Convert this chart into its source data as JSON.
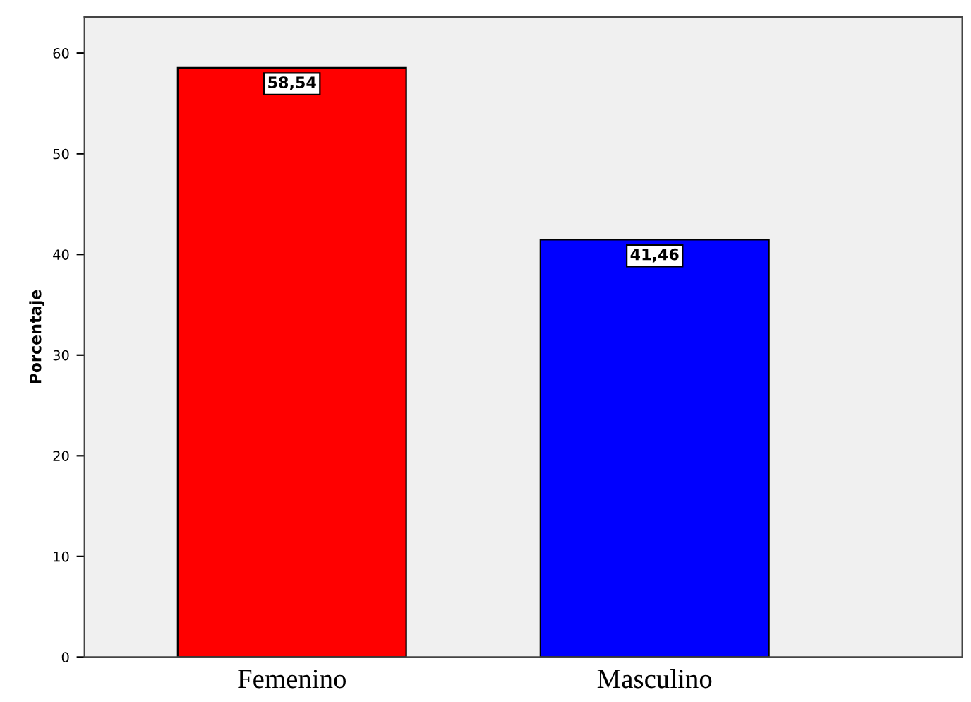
{
  "chart_data": {
    "type": "bar",
    "ylabel": "Porcentaje",
    "categories": [
      "Femenino",
      "Masculino"
    ],
    "values": [
      58.54,
      41.46
    ],
    "colors": [
      "#ff0000",
      "#0000ff"
    ],
    "value_labels": [
      "58,54",
      "41,46"
    ],
    "ylim": [
      0,
      63.6
    ],
    "yticks": [
      0,
      10,
      20,
      30,
      40,
      50,
      60
    ],
    "grid": false,
    "legend": false
  }
}
